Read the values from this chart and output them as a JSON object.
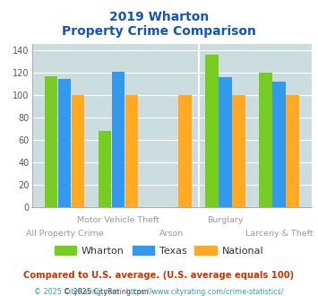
{
  "title_line1": "2019 Wharton",
  "title_line2": "Property Crime Comparison",
  "group_labels_top": [
    "Motor Vehicle Theft",
    "Burglary"
  ],
  "group_labels_bot": [
    "All Property Crime",
    "Arson",
    "Larceny & Theft"
  ],
  "wharton": [
    117,
    68,
    0,
    136,
    120
  ],
  "texas": [
    114,
    121,
    0,
    116,
    112
  ],
  "national": [
    100,
    100,
    100,
    100,
    100
  ],
  "colors": {
    "wharton": "#77cc22",
    "texas": "#3399ee",
    "national": "#ffaa22"
  },
  "ylim": [
    0,
    145
  ],
  "yticks": [
    0,
    20,
    40,
    60,
    80,
    100,
    120,
    140
  ],
  "background_color": "#ccdde0",
  "legend_labels": [
    "Wharton",
    "Texas",
    "National"
  ],
  "footnote1": "Compared to U.S. average. (U.S. average equals 100)",
  "footnote2_prefix": "© 2025 CityRating.com - ",
  "footnote2_link": "https://www.cityrating.com/crime-statistics/",
  "title_color": "#1155bb",
  "footnote1_color": "#cc3300",
  "footnote2_color": "#555555",
  "footnote2_link_color": "#3399cc",
  "xlabel_color": "#999999"
}
